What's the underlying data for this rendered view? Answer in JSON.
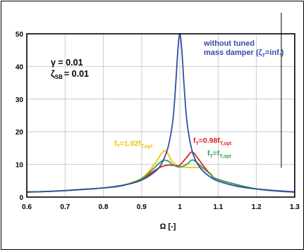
{
  "chart_data": {
    "type": "line",
    "xlabel": "Ω [-]",
    "ylabel": "",
    "xlim": [
      0.6,
      1.3
    ],
    "ylim": [
      0,
      50
    ],
    "x_ticks": [
      "0.6",
      "0.7",
      "0.8",
      "0.9",
      "1",
      "1.1",
      "1.2",
      "1.3"
    ],
    "y_ticks": [
      "0",
      "10",
      "20",
      "30",
      "40",
      "50"
    ],
    "grid": true,
    "params": {
      "gamma": "γ = 0.01",
      "zeta": "ζ",
      "zeta_sub": "SB",
      "zeta_value": "= 0.01"
    },
    "annotation_vline_x": 1.265,
    "series": [
      {
        "key": "without_tmd",
        "name": "without tuned mass damper (ζT=inf.)",
        "label_line1": "without tuned",
        "label_line2": "mass damper (ζ",
        "label_sub": "T",
        "label_end": "=inf.)",
        "color": "#2f4fa8",
        "x": [
          0.6,
          0.65,
          0.7,
          0.75,
          0.8,
          0.85,
          0.88,
          0.9,
          0.92,
          0.94,
          0.95,
          0.96,
          0.97,
          0.98,
          0.985,
          0.99,
          0.995,
          1.0,
          1.005,
          1.01,
          1.015,
          1.02,
          1.03,
          1.04,
          1.05,
          1.06,
          1.08,
          1.1,
          1.15,
          1.2,
          1.25,
          1.3
        ],
        "y": [
          1.6,
          1.7,
          2.0,
          2.4,
          2.8,
          3.6,
          4.4,
          5.2,
          6.5,
          8.3,
          9.8,
          12.2,
          15.7,
          22.0,
          27.8,
          36.2,
          45.5,
          50.0,
          45.0,
          35.8,
          27.4,
          21.6,
          15.0,
          11.5,
          9.5,
          8.0,
          6.1,
          4.9,
          3.3,
          2.5,
          2.0,
          1.6
        ]
      },
      {
        "key": "f102",
        "name": "fT=1.02fT,opt",
        "label_main": "f",
        "label_sub1": "T",
        "label_mid": "=1.02f",
        "label_sub2": "T,opt",
        "color": "#f2c200",
        "x": [
          0.6,
          0.7,
          0.8,
          0.85,
          0.9,
          0.93,
          0.95,
          0.96,
          0.97,
          0.98,
          1.0,
          1.02,
          1.04,
          1.06,
          1.08,
          1.1,
          1.2,
          1.3
        ],
        "y": [
          1.5,
          2.0,
          2.8,
          3.6,
          5.8,
          9.5,
          13.0,
          14.2,
          13.0,
          10.8,
          9.4,
          9.1,
          9.1,
          8.8,
          7.2,
          5.4,
          2.5,
          1.5
        ]
      },
      {
        "key": "f098",
        "name": "fT=0.98fT,opt",
        "label_main": "f",
        "label_sub1": "T",
        "label_mid": "=0.98f",
        "label_sub2": "T,opt",
        "color": "#e02020",
        "x": [
          0.6,
          0.7,
          0.8,
          0.85,
          0.9,
          0.93,
          0.95,
          0.97,
          0.99,
          1.0,
          1.02,
          1.03,
          1.04,
          1.06,
          1.08,
          1.1,
          1.2,
          1.3
        ],
        "y": [
          1.5,
          2.0,
          2.8,
          3.5,
          5.5,
          7.8,
          9.2,
          9.8,
          9.6,
          9.8,
          12.5,
          13.8,
          13.0,
          9.8,
          7.0,
          5.4,
          2.5,
          1.5
        ]
      },
      {
        "key": "fopt",
        "name": "fT=fT,opt",
        "label_main": "f",
        "label_sub1": "T",
        "label_mid": "=f",
        "label_sub2": "T,opt",
        "color": "#2e9e54",
        "x": [
          0.6,
          0.7,
          0.8,
          0.85,
          0.9,
          0.93,
          0.95,
          0.96,
          0.97,
          0.98,
          1.0,
          1.02,
          1.03,
          1.04,
          1.06,
          1.08,
          1.1,
          1.2,
          1.3
        ],
        "y": [
          1.5,
          2.0,
          2.8,
          3.5,
          5.6,
          8.6,
          10.8,
          11.3,
          11.0,
          10.0,
          9.2,
          10.2,
          11.3,
          11.0,
          9.0,
          7.0,
          5.4,
          2.5,
          1.5
        ]
      }
    ]
  }
}
